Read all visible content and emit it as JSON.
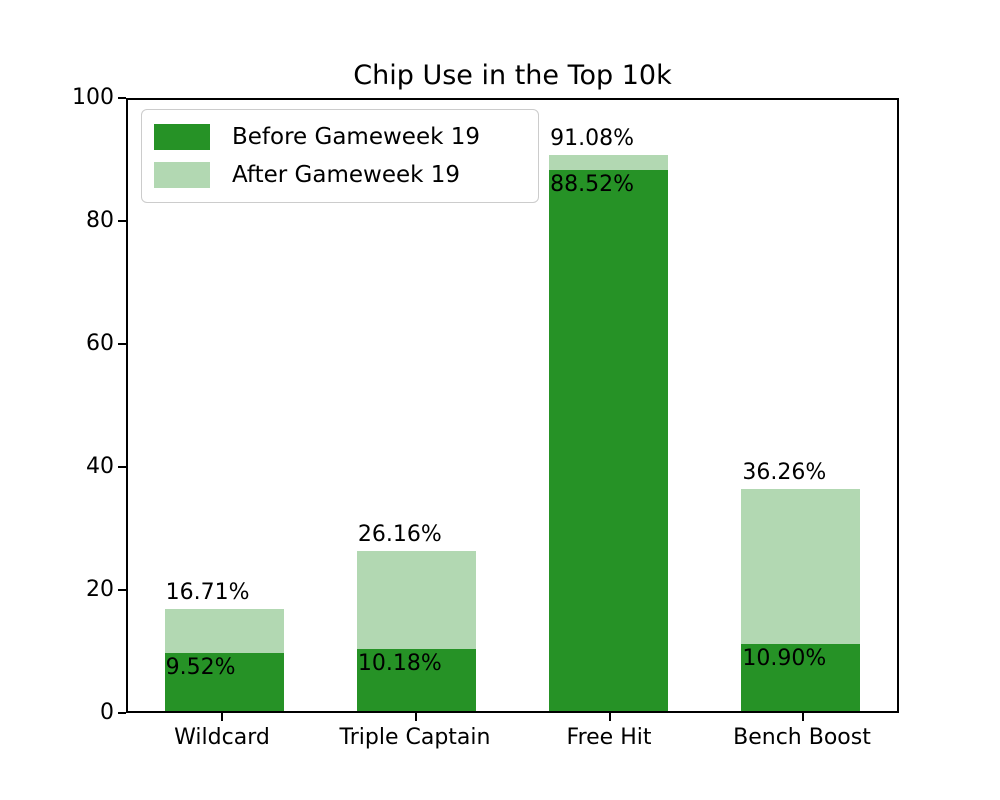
{
  "title": "Chip Use in the Top 10k",
  "legend": {
    "items": [
      {
        "label": "Before Gameweek 19",
        "color": "#269226"
      },
      {
        "label": "After Gameweek 19",
        "color": "#b2d8b2"
      }
    ]
  },
  "chart_data": {
    "type": "bar",
    "title": "Chip Use in the Top 10k",
    "categories": [
      "Wildcard",
      "Triple Captain",
      "Free Hit",
      "Bench Boost"
    ],
    "series": [
      {
        "name": "Before Gameweek 19",
        "color": "#269226",
        "values": [
          9.52,
          10.18,
          88.52,
          10.9
        ]
      },
      {
        "name": "After Gameweek 19",
        "color": "#b2d8b2",
        "values": [
          16.71,
          26.16,
          91.08,
          36.26
        ]
      }
    ],
    "bar_labels": {
      "before": [
        "9.52%",
        "10.18%",
        "88.52%",
        "10.90%"
      ],
      "after": [
        "16.71%",
        "26.16%",
        "91.08%",
        "36.26%"
      ]
    },
    "xlabel": "",
    "ylabel": "",
    "ylim": [
      0,
      100
    ],
    "yticks": [
      "0",
      "20",
      "40",
      "60",
      "80",
      "100"
    ],
    "grid": false,
    "legend_position": "upper left",
    "bar_style": "overlaid"
  }
}
